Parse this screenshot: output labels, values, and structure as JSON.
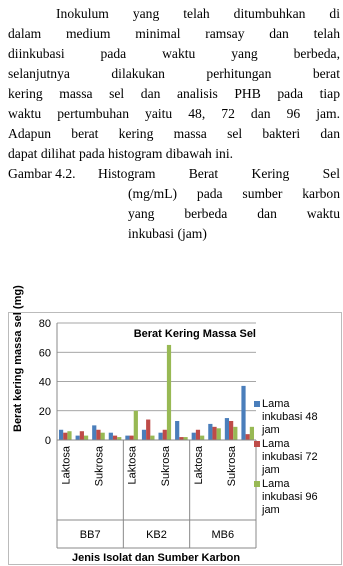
{
  "paragraph": [
    "Inokulum yang telah ditumbuhkan di",
    "dalam medium minimal ramsay dan telah",
    "diinkubasi pada waktu yang berbeda,",
    "selanjutnya dilakukan perhitungan berat",
    "kering massa sel dan analisis PHB pada tiap",
    "waktu pertumbuhan yaitu 48, 72 dan 96 jam.",
    "Adapun berat kering massa sel bakteri dan",
    "dapat dilihat pada histogram dibawah ini."
  ],
  "caption": {
    "label": "Gambar 4.2.",
    "lines": [
      "Histogram Berat Kering Sel",
      "(mg/mL) pada sumber karbon",
      "yang berbeda dan waktu",
      "inkubasi (jam)"
    ]
  },
  "chart_data": {
    "type": "bar",
    "title": "Berat Kering Massa Sel",
    "y_label": "Berat kering massa sel (mg)",
    "x_label": "Jenis Isolat dan Sumber Karbon",
    "groups": [
      "BB7",
      "KB2",
      "MB6"
    ],
    "categories": [
      "Laktosa",
      null,
      "Sukrosa",
      null,
      "Laktosa",
      null,
      "Sukrosa",
      null,
      "Laktosa",
      null,
      "Sukrosa",
      null
    ],
    "series": [
      {
        "name": "Lama inkubasi 48 jam",
        "color": "#4a7ebb",
        "values": [
          7,
          3,
          10,
          5,
          3,
          7,
          5,
          13,
          5,
          11,
          15,
          37
        ]
      },
      {
        "name": "Lama inkubasi 72 jam",
        "color": "#be4b48",
        "values": [
          5,
          6,
          7,
          3,
          3,
          14,
          7,
          2,
          7,
          9,
          13,
          4
        ]
      },
      {
        "name": "Lama inkubasi 96 jam",
        "color": "#98b954",
        "values": [
          6,
          3,
          5,
          2,
          20,
          3,
          65,
          2,
          3,
          8,
          9,
          9
        ]
      }
    ],
    "ylim": [
      0,
      80
    ],
    "yticks": [
      0,
      20,
      40,
      60,
      80
    ],
    "grid": true
  }
}
